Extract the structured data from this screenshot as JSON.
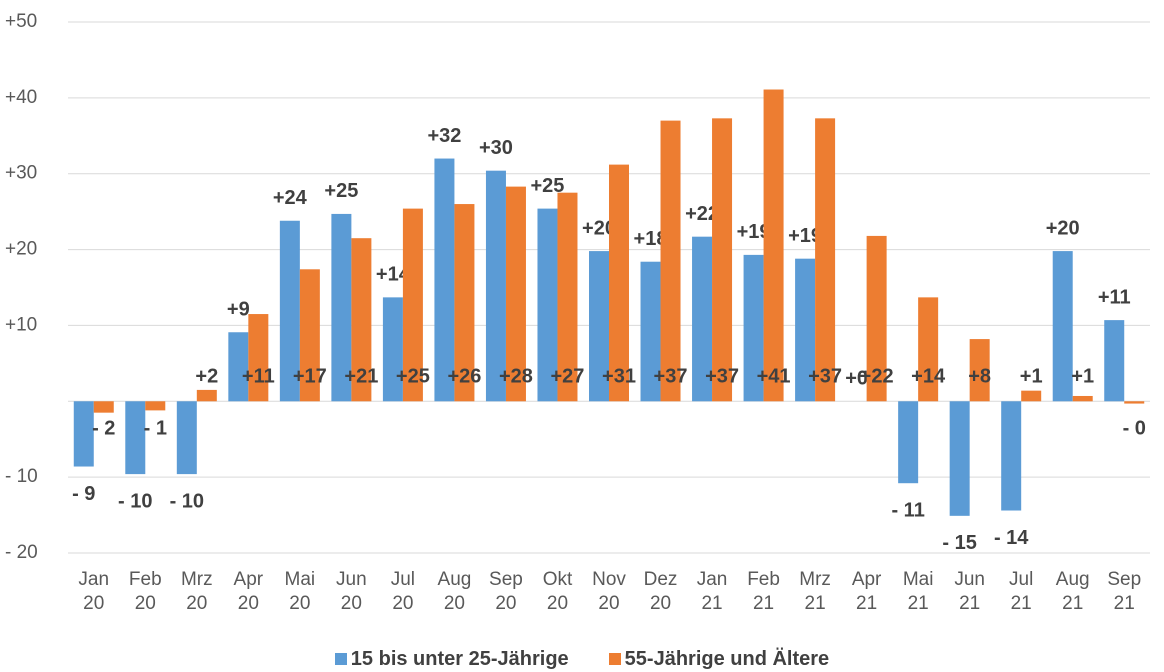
{
  "chart_data": {
    "type": "bar",
    "categories": [
      "Jan\n20",
      "Feb\n20",
      "Mrz\n20",
      "Apr\n20",
      "Mai\n20",
      "Jun\n20",
      "Jul\n20",
      "Aug\n20",
      "Sep\n20",
      "Okt\n20",
      "Nov\n20",
      "Dez\n20",
      "Jan\n21",
      "Feb\n21",
      "Mrz\n21",
      "Apr\n21",
      "Mai\n21",
      "Jun\n21",
      "Jul\n21",
      "Aug\n21",
      "Sep\n21"
    ],
    "series": [
      {
        "name": "15 bis unter 25-Jährige",
        "color": "#5b9bd5",
        "values": [
          -8.6,
          -9.6,
          -9.6,
          9.1,
          23.8,
          24.7,
          13.7,
          32.0,
          30.4,
          25.4,
          19.8,
          18.4,
          21.7,
          19.3,
          18.8,
          0,
          -10.8,
          -15.1,
          -14.4,
          19.8,
          10.7
        ],
        "value_labels": [
          "- 9",
          "- 10",
          "- 10",
          "+9",
          "+24",
          "+25",
          "+14",
          "+32",
          "+30",
          "+25",
          "+20",
          "+18",
          "+22",
          "+19",
          "+19",
          "+0",
          "- 11",
          "- 15",
          "- 14",
          "+20",
          "+11"
        ]
      },
      {
        "name": "55-Jährige und Ältere",
        "color": "#ed7d31",
        "values": [
          -1.5,
          -1.2,
          1.5,
          11.5,
          17.4,
          21.5,
          25.4,
          26.0,
          28.3,
          27.5,
          31.2,
          37.0,
          37.3,
          41.1,
          37.3,
          21.8,
          13.7,
          8.2,
          1.4,
          0.7,
          -0.3
        ],
        "value_labels": [
          "- 2",
          "- 1",
          "+2",
          "+11",
          "+17",
          "+21",
          "+25",
          "+26",
          "+28",
          "+27",
          "+31",
          "+37",
          "+37",
          "+41",
          "+37",
          "+22",
          "+14",
          "+8",
          "+1",
          "+1",
          "- 0"
        ]
      }
    ],
    "ylim": [
      -20,
      50
    ],
    "yticks": [
      {
        "value": -20,
        "label": "- 20"
      },
      {
        "value": -10,
        "label": "- 10"
      },
      {
        "value": 10,
        "label": "+10"
      },
      {
        "value": 20,
        "label": "+20"
      },
      {
        "value": 30,
        "label": "+30"
      },
      {
        "value": 40,
        "label": "+40"
      },
      {
        "value": 50,
        "label": "+50"
      }
    ],
    "grid": true,
    "legend": "bottom"
  }
}
